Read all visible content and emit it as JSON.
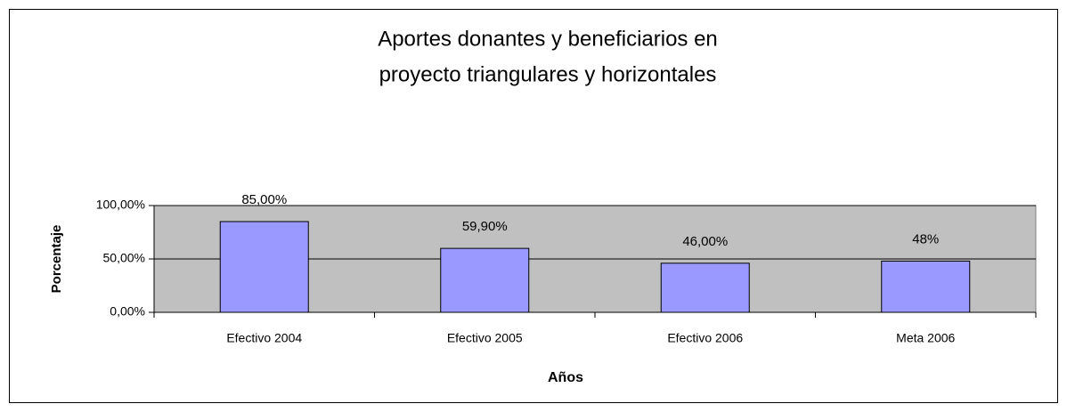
{
  "chart_data": {
    "type": "bar",
    "title": [
      "Aportes donantes y beneficiarios en",
      "proyecto triangulares  y  horizontales"
    ],
    "x_label": "Años",
    "y_label": "Porcentaje",
    "categories": [
      "Efectivo 2004",
      "Efectivo 2005",
      "Efectivo 2006",
      "Meta 2006"
    ],
    "values": [
      85,
      59.9,
      46,
      48
    ],
    "value_labels": [
      "85,00%",
      "59,90%",
      "46,00%",
      "48%"
    ],
    "color": "#9999ff",
    "ylim": [
      0,
      100
    ],
    "yticks": [
      {
        "value": 0,
        "label": "0,00%"
      },
      {
        "value": 50,
        "label": "50,00%"
      },
      {
        "value": 100,
        "label": "100,00%"
      }
    ],
    "grid": true
  }
}
